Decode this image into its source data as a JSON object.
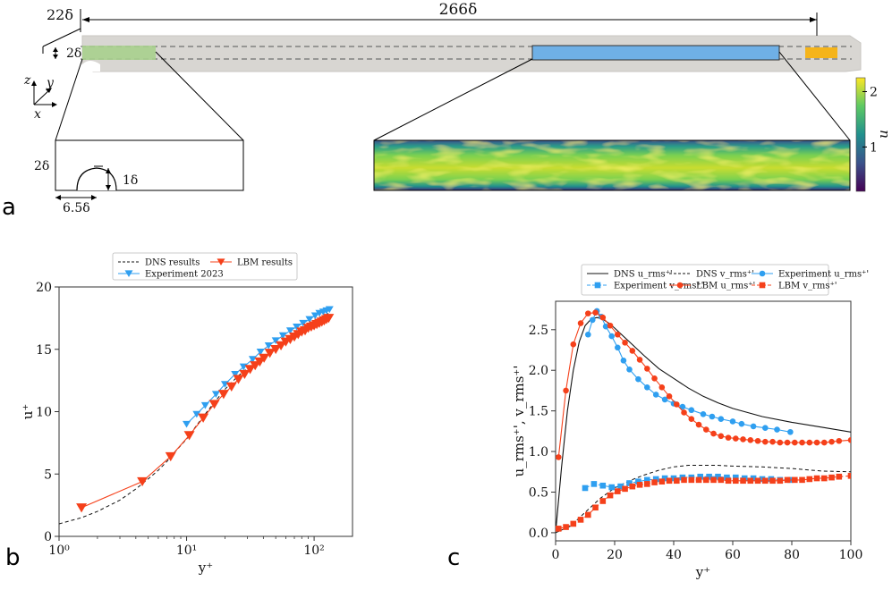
{
  "panels": {
    "a": {
      "letter": "a",
      "labels": {
        "offset": "22δ",
        "length": "266δ",
        "height_main": "2δ",
        "axis_z": "z",
        "axis_y": "y",
        "axis_x": "x",
        "inset_height": "2δ",
        "bump_height": "1δ",
        "bump_width": "6.5δ"
      },
      "colorbar": {
        "label": "u",
        "ticks": [
          "1",
          "2"
        ],
        "range": [
          0.2,
          2.25
        ]
      }
    },
    "b": {
      "letter": "b"
    },
    "c": {
      "letter": "c"
    }
  },
  "colors": {
    "lbm": "#f5401a",
    "experiment": "#2f9ff0",
    "dns": "#111111",
    "inlet_region": "#a8d08d",
    "window_region": "#6fb0e6",
    "outlet_region": "#f5b41a",
    "channel": "#d8d6d2"
  },
  "chart_data": [
    {
      "id": "b",
      "type": "line",
      "xscale": "log",
      "xlim": [
        1,
        200
      ],
      "ylim": [
        0,
        20
      ],
      "xlabel": "y⁺",
      "ylabel": "u⁺",
      "xticks": [
        {
          "v": 1,
          "label": "10⁰"
        },
        {
          "v": 10,
          "label": "10¹"
        },
        {
          "v": 100,
          "label": "10²"
        }
      ],
      "yticks": [
        0,
        5,
        10,
        15,
        20
      ],
      "legend": {
        "placement": "top",
        "entries": [
          "DNS results",
          "LBM results",
          "Experiment 2023"
        ]
      },
      "series": [
        {
          "name": "DNS results",
          "style": "dashed",
          "color": "#111111",
          "x": [
            1.0,
            1.5,
            2,
            3,
            4,
            5,
            6,
            7,
            8,
            10,
            12,
            15,
            20,
            25,
            30,
            40,
            50,
            60,
            80,
            100,
            130
          ],
          "y": [
            1.0,
            1.5,
            2.0,
            2.9,
            3.8,
            4.6,
            5.3,
            6.0,
            6.7,
            7.8,
            8.9,
            10.2,
            11.8,
            12.8,
            13.5,
            14.5,
            15.2,
            15.7,
            16.5,
            17.1,
            17.9
          ]
        },
        {
          "name": "Experiment 2023",
          "style": "line-marker-tri-down",
          "color": "#2f9ff0",
          "x": [
            10,
            12,
            14,
            17,
            20,
            24,
            28,
            33,
            38,
            44,
            50,
            57,
            65,
            73,
            82,
            92,
            102,
            110,
            118,
            125,
            132
          ],
          "y": [
            9.0,
            9.8,
            10.5,
            11.4,
            12.2,
            13.0,
            13.6,
            14.2,
            14.8,
            15.3,
            15.7,
            16.1,
            16.5,
            16.8,
            17.1,
            17.4,
            17.7,
            17.9,
            18.0,
            18.1,
            18.2
          ]
        },
        {
          "name": "LBM results",
          "style": "line-marker-tri-down-large",
          "color": "#f5401a",
          "x": [
            1.5,
            4.5,
            7.5,
            10.5,
            13.5,
            16.5,
            19.5,
            22.5,
            25.5,
            28.5,
            31.5,
            34.5,
            37.5,
            40.5,
            45,
            50,
            55,
            60,
            65,
            70,
            75,
            80,
            85,
            90,
            95,
            100,
            105,
            110,
            115,
            120,
            125,
            130
          ],
          "y": [
            2.3,
            4.4,
            6.4,
            8.1,
            9.5,
            10.6,
            11.4,
            12.0,
            12.6,
            13.0,
            13.4,
            13.7,
            14.0,
            14.3,
            14.7,
            15.0,
            15.3,
            15.6,
            15.8,
            16.0,
            16.2,
            16.4,
            16.5,
            16.7,
            16.8,
            16.9,
            17.0,
            17.1,
            17.2,
            17.3,
            17.4,
            17.5
          ]
        }
      ]
    },
    {
      "id": "c",
      "type": "line",
      "xlim": [
        0,
        100
      ],
      "ylim": [
        -0.1,
        2.85
      ],
      "xlabel": "y⁺",
      "ylabel": "u_rms⁺', v_rms⁺'",
      "xticks": [
        0,
        20,
        40,
        60,
        80,
        100
      ],
      "yticks": [
        0.0,
        0.5,
        1.0,
        1.5,
        2.0,
        2.5
      ],
      "legend": {
        "placement": "top",
        "entries": [
          "DNS u_rms⁺'",
          "DNS v_rms⁺'",
          "Experiment u_rms⁺'",
          "Experiment v_rms⁺'",
          "LBM u_rms⁺'",
          "LBM v_rms⁺'"
        ]
      },
      "series": [
        {
          "name": "DNS u_rms⁺'",
          "style": "solid",
          "color": "#111111",
          "x": [
            0,
            2,
            4,
            6,
            8,
            10,
            12,
            14,
            16,
            18,
            20,
            25,
            30,
            35,
            40,
            45,
            50,
            55,
            60,
            70,
            80,
            90,
            100
          ],
          "y": [
            0,
            0.8,
            1.5,
            2.0,
            2.35,
            2.55,
            2.63,
            2.65,
            2.63,
            2.58,
            2.52,
            2.35,
            2.18,
            2.02,
            1.9,
            1.78,
            1.68,
            1.6,
            1.53,
            1.43,
            1.36,
            1.3,
            1.24
          ]
        },
        {
          "name": "DNS v_rms⁺'",
          "style": "dashed",
          "color": "#111111",
          "x": [
            0,
            5,
            10,
            15,
            20,
            25,
            30,
            35,
            40,
            45,
            50,
            55,
            60,
            70,
            80,
            90,
            100
          ],
          "y": [
            0,
            0.08,
            0.25,
            0.42,
            0.55,
            0.64,
            0.71,
            0.77,
            0.81,
            0.83,
            0.83,
            0.83,
            0.82,
            0.81,
            0.79,
            0.76,
            0.75
          ]
        },
        {
          "name": "Experiment u_rms⁺'",
          "style": "line-marker-circle",
          "color": "#2f9ff0",
          "x": [
            11,
            12.5,
            14,
            15.5,
            17,
            19,
            21,
            23,
            25,
            28,
            31,
            34,
            37,
            40,
            43,
            46,
            50,
            53,
            56,
            60,
            63,
            67,
            71,
            75,
            79.5
          ],
          "y": [
            2.44,
            2.62,
            2.73,
            2.66,
            2.54,
            2.42,
            2.28,
            2.12,
            2.01,
            1.89,
            1.79,
            1.7,
            1.64,
            1.59,
            1.55,
            1.51,
            1.46,
            1.43,
            1.4,
            1.37,
            1.34,
            1.31,
            1.29,
            1.27,
            1.24
          ]
        },
        {
          "name": "Experiment v_rms⁺'",
          "style": "line-marker-square",
          "color": "#2f9ff0",
          "x": [
            10,
            13,
            16,
            19,
            22,
            25,
            28,
            31,
            34,
            37,
            40,
            43,
            46,
            49,
            52,
            55,
            58,
            61,
            64,
            67,
            70,
            73,
            76,
            79.5
          ],
          "y": [
            0.55,
            0.6,
            0.58,
            0.56,
            0.57,
            0.61,
            0.63,
            0.65,
            0.66,
            0.67,
            0.67,
            0.68,
            0.68,
            0.69,
            0.69,
            0.69,
            0.68,
            0.68,
            0.67,
            0.67,
            0.66,
            0.66,
            0.65,
            0.65
          ]
        },
        {
          "name": "LBM u_rms⁺'",
          "style": "line-marker-circle",
          "color": "#f5401a",
          "x": [
            1,
            3.5,
            6,
            8.5,
            11,
            13.5,
            16,
            18.5,
            21,
            23.5,
            26,
            28.5,
            31,
            33.5,
            36,
            38.5,
            41,
            43.5,
            46,
            48.5,
            51,
            53.5,
            56,
            58.5,
            61,
            63.5,
            66,
            68.5,
            71,
            73.5,
            76,
            78.5,
            81,
            83.5,
            86,
            88.5,
            91,
            93.5,
            96,
            100
          ],
          "y": [
            0.93,
            1.75,
            2.32,
            2.58,
            2.7,
            2.71,
            2.65,
            2.55,
            2.44,
            2.34,
            2.24,
            2.13,
            2.02,
            1.9,
            1.79,
            1.68,
            1.58,
            1.48,
            1.4,
            1.33,
            1.27,
            1.22,
            1.19,
            1.17,
            1.16,
            1.15,
            1.14,
            1.13,
            1.12,
            1.12,
            1.11,
            1.11,
            1.11,
            1.11,
            1.11,
            1.11,
            1.11,
            1.12,
            1.13,
            1.14
          ]
        },
        {
          "name": "LBM v_rms⁺'",
          "style": "line-marker-square",
          "color": "#f5401a",
          "x": [
            1,
            3.5,
            6,
            8.5,
            11,
            13.5,
            16,
            18.5,
            21,
            23.5,
            26,
            28.5,
            31,
            33.5,
            36,
            38.5,
            41,
            43.5,
            46,
            48.5,
            51,
            53.5,
            56,
            58.5,
            61,
            63.5,
            66,
            68.5,
            71,
            73.5,
            76,
            78.5,
            81,
            83.5,
            86,
            88.5,
            91,
            93.5,
            96,
            100
          ],
          "y": [
            0.05,
            0.07,
            0.11,
            0.16,
            0.22,
            0.31,
            0.39,
            0.46,
            0.51,
            0.54,
            0.57,
            0.59,
            0.6,
            0.62,
            0.63,
            0.64,
            0.64,
            0.65,
            0.65,
            0.65,
            0.65,
            0.65,
            0.65,
            0.64,
            0.64,
            0.64,
            0.64,
            0.64,
            0.64,
            0.64,
            0.64,
            0.65,
            0.65,
            0.65,
            0.66,
            0.67,
            0.67,
            0.68,
            0.69,
            0.7
          ]
        }
      ]
    }
  ]
}
